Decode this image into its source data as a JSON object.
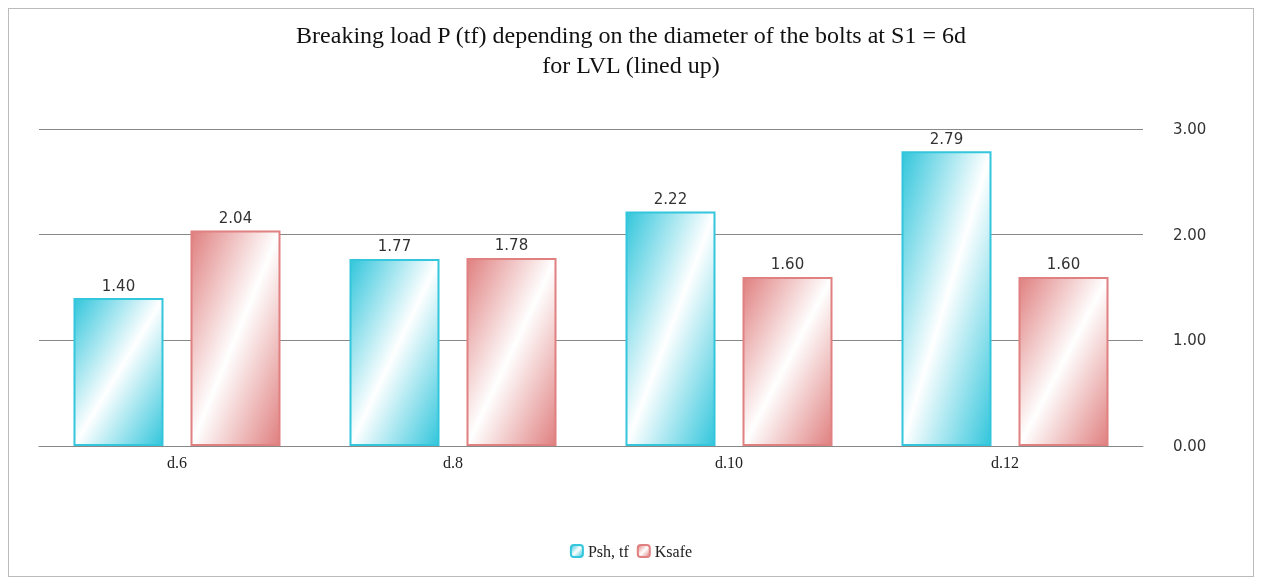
{
  "chart_data": {
    "type": "bar",
    "title": "Breaking load P (tf) depending on the diameter of the bolts at S1 = 6d\nfor LVL (lined up)",
    "categories": [
      "d.6",
      "d.8",
      "d.10",
      "d.12"
    ],
    "series": [
      {
        "name": "Psh, tf",
        "color": "#33c6dc",
        "values": [
          1.4,
          1.77,
          2.22,
          2.79
        ],
        "value_labels": [
          "1.40",
          "1.77",
          "2.22",
          "2.79"
        ]
      },
      {
        "name": "Ksafe",
        "color": "#e08080",
        "values": [
          2.04,
          1.78,
          1.6,
          1.6
        ],
        "value_labels": [
          "2.04",
          "1.78",
          "1.60",
          "1.60"
        ]
      }
    ],
    "ylim": [
      0,
      3
    ],
    "yticks": [
      {
        "value": 0,
        "label": "0.00"
      },
      {
        "value": 1,
        "label": "1.00"
      },
      {
        "value": 2,
        "label": "2.00"
      },
      {
        "value": 3,
        "label": "3.00"
      }
    ],
    "grid": "y",
    "legend": "bottom"
  }
}
